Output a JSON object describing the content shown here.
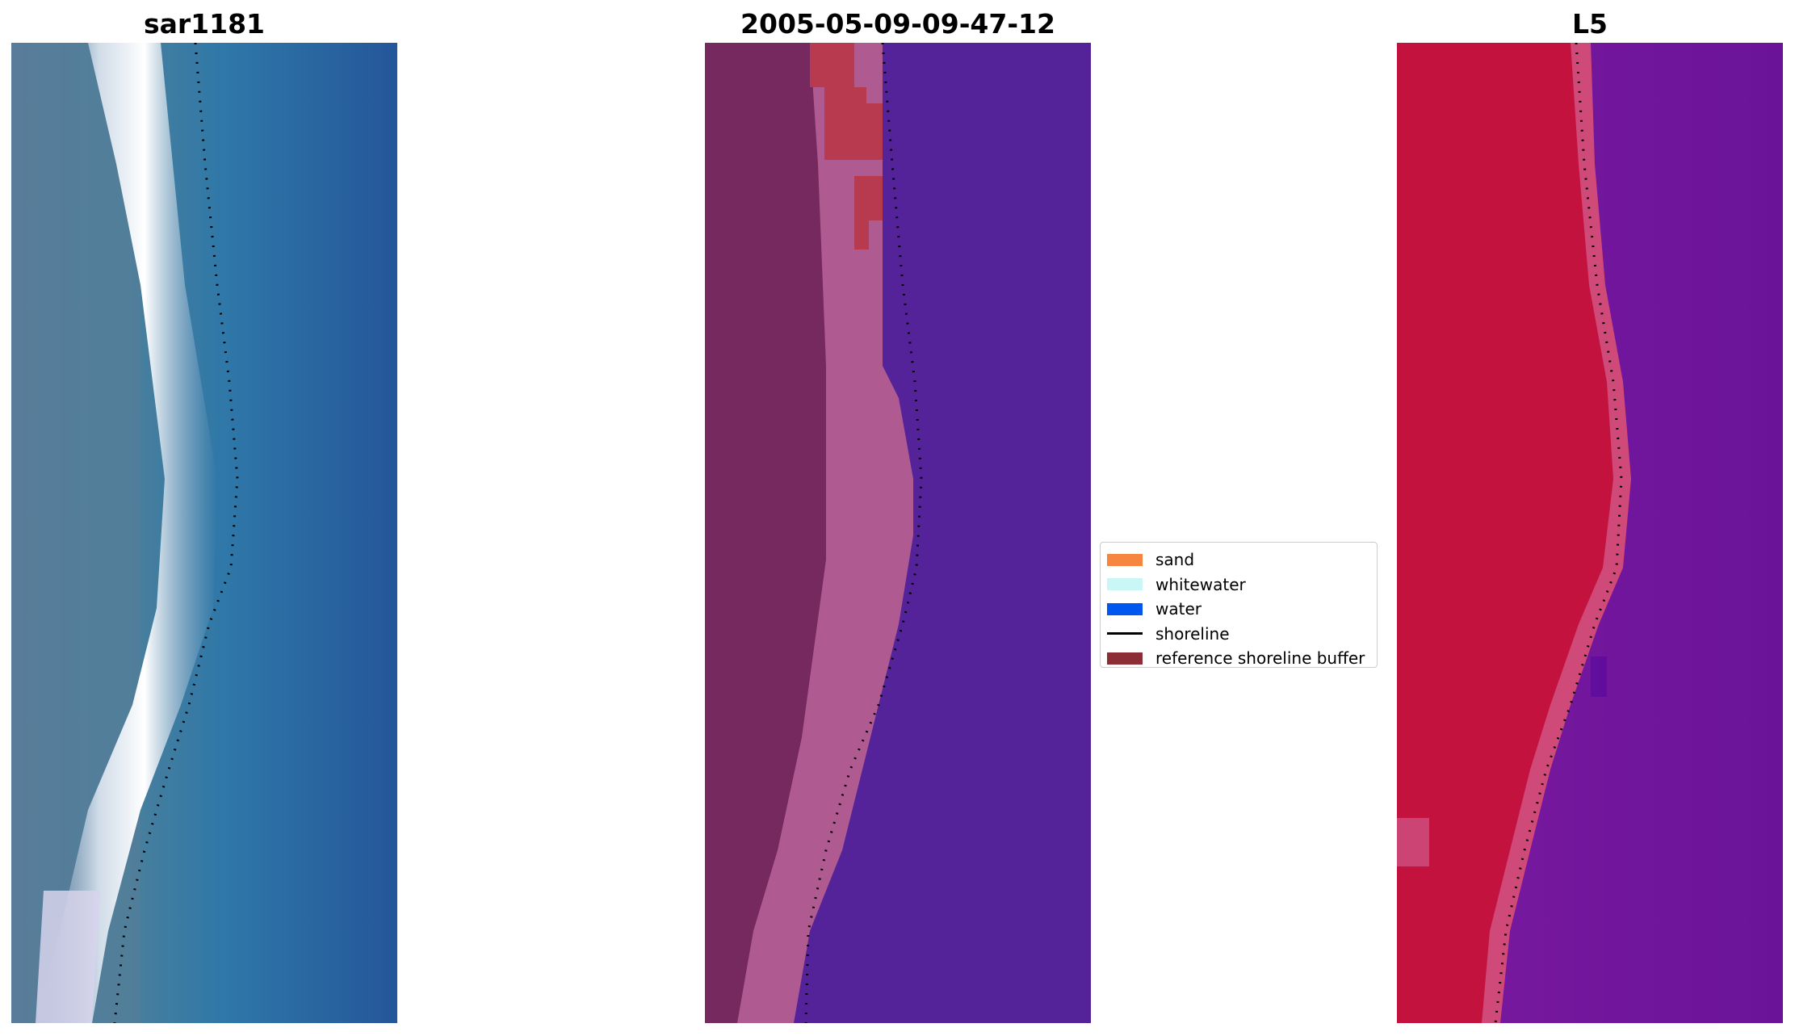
{
  "panels": [
    {
      "id": "rgb",
      "title": "sar1181",
      "content": "satellite RGB composite"
    },
    {
      "id": "classified",
      "title": "2005-05-09-09-47-12",
      "content": "pixel classification overlay"
    },
    {
      "id": "index",
      "title": "L5",
      "content": "water index image"
    }
  ],
  "legend": {
    "items": [
      {
        "label": "sand",
        "kind": "patch",
        "color": "#f5853f"
      },
      {
        "label": "whitewater",
        "kind": "patch",
        "color": "#c8f7f5"
      },
      {
        "label": "water",
        "kind": "patch",
        "color": "#0057f0"
      },
      {
        "label": "shoreline",
        "kind": "line",
        "color": "#000000"
      },
      {
        "label": "reference shoreline buffer",
        "kind": "patch",
        "color": "#8c2d35"
      }
    ]
  },
  "colors": {
    "rgb_water": "#2a6aa0",
    "rgb_land": "#4c7a9a",
    "rgb_surf": "#eef3f7",
    "class_land": "#75295f",
    "class_edge": "#b05a92",
    "class_water": "#552399",
    "class_buffer": "#b83a4e",
    "index_land": "#c4123f",
    "index_edge": "#cf4a78",
    "index_water": "#6b1399",
    "shoreline": "#000000"
  }
}
